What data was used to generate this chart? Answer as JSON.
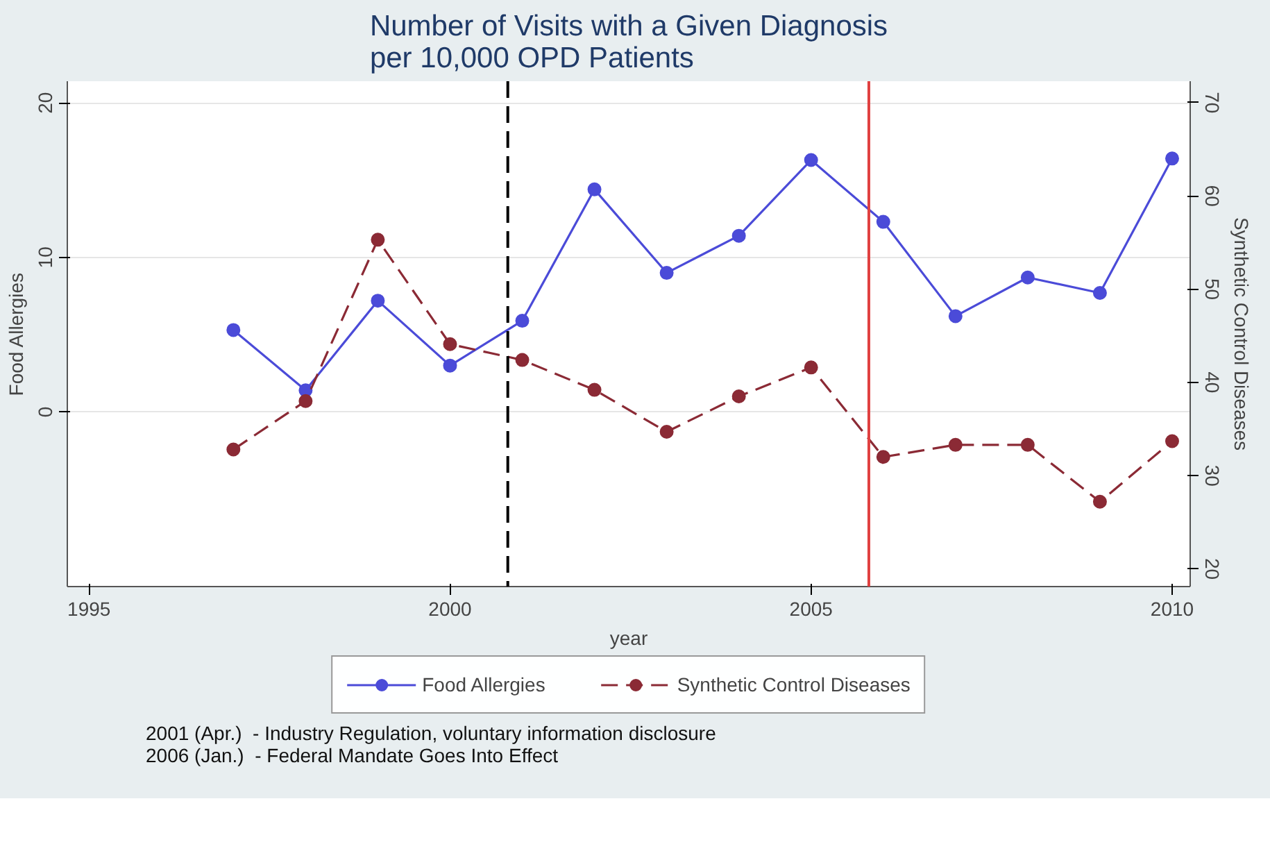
{
  "chart_data": {
    "type": "line",
    "title": "Number of Visits with a Given Diagnosis\nper 10,000 OPD Patients",
    "xlabel": "year",
    "ylabel": "Food Allergies",
    "y2label": "Synthetic Control Diseases",
    "x": [
      1997,
      1998,
      1999,
      2000,
      2001,
      2002,
      2003,
      2004,
      2005,
      2006,
      2007,
      2008,
      2009,
      2010
    ],
    "series": [
      {
        "name": "Food Allergies",
        "color": "#4b4bd8",
        "line_style": "solid",
        "values": [
          5.3,
          1.4,
          7.2,
          3.0,
          5.9,
          14.4,
          9.0,
          11.4,
          16.3,
          12.3,
          6.2,
          8.7,
          7.7,
          16.4
        ]
      },
      {
        "name": "Synthetic Control Diseases",
        "color": "#8b2a35",
        "line_style": "dashed",
        "axis": "y2",
        "values": [
          32.8,
          38.0,
          55.3,
          44.1,
          42.4,
          39.2,
          34.7,
          38.5,
          41.6,
          32.0,
          33.3,
          33.3,
          27.2,
          33.7
        ]
      }
    ],
    "xlim": [
      1994.7,
      2010.25
    ],
    "xticks": [
      1995,
      2000,
      2005,
      2010
    ],
    "ylim": [
      -11.3,
      21.4
    ],
    "yticks": [
      0,
      10,
      20
    ],
    "y2lim": [
      18.1,
      72.3
    ],
    "y2ticks": [
      20,
      30,
      40,
      50,
      60,
      70
    ],
    "ref_lines": [
      {
        "axis": "x",
        "value": 2000.8,
        "color": "#000000",
        "line_style": "dashed"
      },
      {
        "axis": "x",
        "value": 2005.8,
        "color": "#e04040",
        "line_style": "solid"
      }
    ],
    "grid": "y",
    "legend": "bottom",
    "marker": "circle",
    "annotations": [
      "2001 (Apr.)  - Industry Regulation, voluntary information disclosure",
      "2006 (Jan.)  - Federal Mandate Goes Into Effect"
    ]
  }
}
